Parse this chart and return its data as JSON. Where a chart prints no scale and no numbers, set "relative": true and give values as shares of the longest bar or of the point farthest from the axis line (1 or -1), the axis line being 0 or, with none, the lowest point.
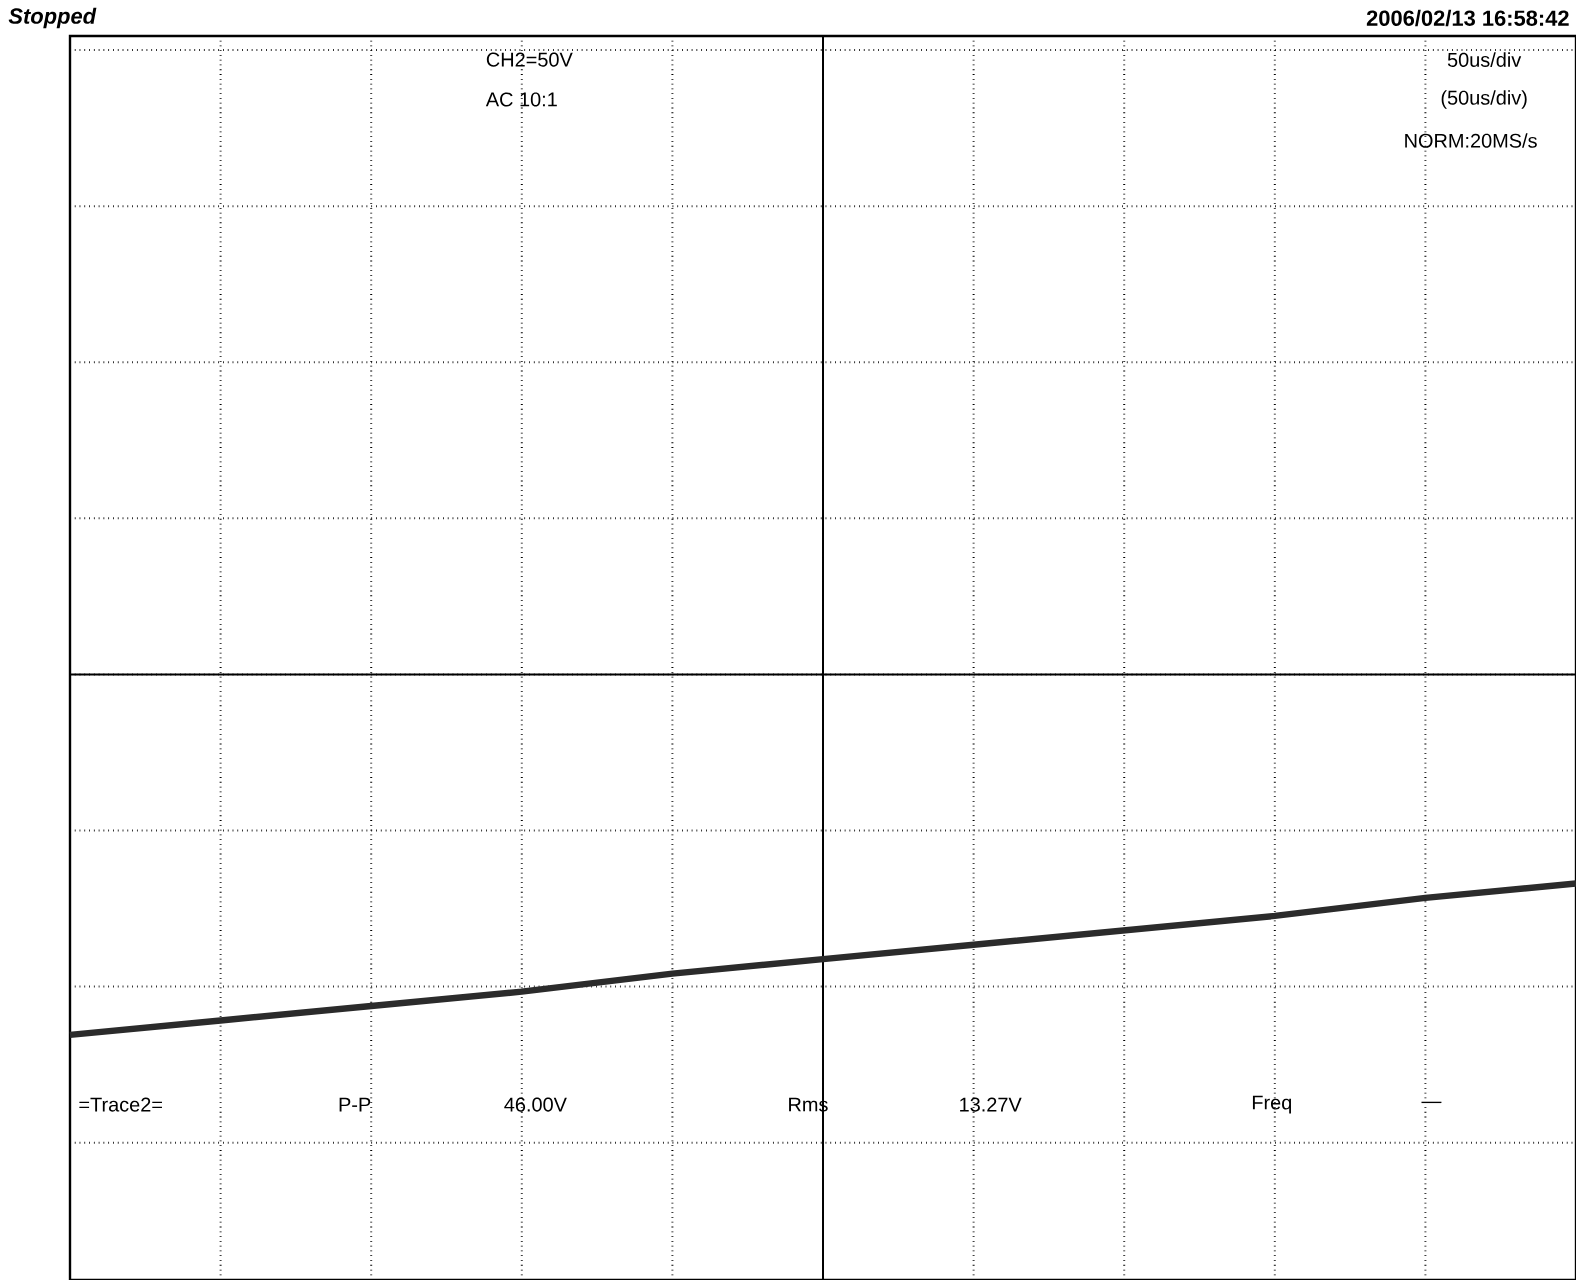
{
  "chart_data": {
    "type": "line",
    "relative": true,
    "grid": true,
    "color": "#2b2b2b",
    "categories": [
      null,
      null,
      null,
      null,
      null,
      null,
      null,
      null,
      null,
      null,
      null
    ],
    "values": [
      -1,
      -0.96,
      -0.92,
      -0.88,
      -0.83,
      -0.79,
      -0.75,
      -0.71,
      -0.67,
      -0.62,
      -0.58
    ],
    "annotations": [
      "Stopped",
      "2006/02/13 16:58:42",
      "CH2=50V",
      "AC 10:1",
      "50us/div",
      "(50us/div)",
      "NORM:20MS/s",
      "=Trace2=",
      "P-P",
      "46.00V",
      "Rms",
      "13.27V",
      "Freq",
      "—"
    ]
  }
}
